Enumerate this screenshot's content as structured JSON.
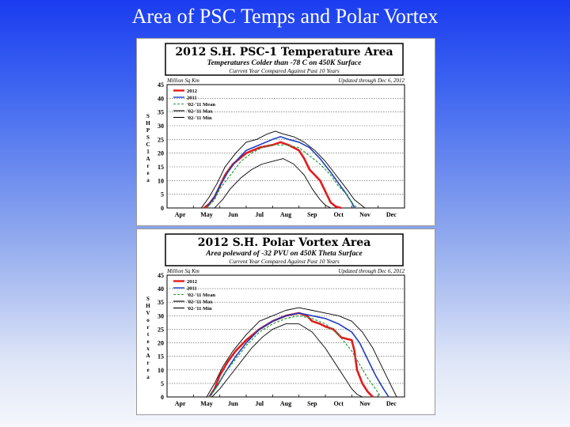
{
  "slide": {
    "title": "Area of PSC Temps and Polar Vortex"
  },
  "chart_data": [
    {
      "type": "line",
      "title": "2012 S.H. PSC-1 Temperature Area",
      "subtitle": "Temperatures Colder than -78 C on 450K Surface",
      "subtitle2": "Current Year Compared Against Past 10 Years",
      "units_label": "Million Sq Km",
      "updated": "Updated through Dec 6, 2012",
      "ylabel": "SH PSC1 Area",
      "ylim": [
        0,
        45
      ],
      "yticks": [
        "0",
        "5",
        "10",
        "15",
        "20",
        "25",
        "30",
        "35",
        "40",
        "45"
      ],
      "xlim": [
        0,
        9
      ],
      "xticks": [
        "Apr",
        "May",
        "Jun",
        "Jul",
        "Aug",
        "Sep",
        "Oct",
        "Nov",
        "Dec"
      ],
      "legend": {
        "placement": "top-left",
        "entries": [
          "2012",
          "2011",
          "'02-'11 Mean",
          "'02-'11 Max",
          "'02-'11 Min"
        ]
      },
      "series": [
        {
          "name": "2012",
          "color": "#e31a1c",
          "style": "solid-thick",
          "x": [
            1.4,
            1.6,
            1.8,
            2.0,
            2.2,
            2.5,
            3.0,
            3.5,
            4.0,
            4.3,
            4.6,
            4.8,
            5.0,
            5.2,
            5.4,
            5.6,
            5.8,
            6.0,
            6.2,
            6.4,
            6.6
          ],
          "y": [
            0,
            1.5,
            4,
            8,
            12,
            16,
            20,
            22,
            23,
            24,
            23,
            22,
            21,
            18,
            14,
            12,
            10,
            6,
            2,
            0.5,
            0
          ]
        },
        {
          "name": "2011",
          "color": "#1f3fbf",
          "style": "solid",
          "x": [
            1.5,
            1.8,
            2.0,
            2.3,
            2.6,
            3.0,
            3.5,
            4.0,
            4.3,
            4.6,
            5.0,
            5.4,
            5.8,
            6.2,
            6.5,
            6.8,
            7.0,
            7.1
          ],
          "y": [
            0,
            4,
            8,
            13,
            17,
            21,
            23,
            25,
            26,
            25,
            24,
            22,
            18,
            13,
            9,
            5,
            2,
            0
          ]
        },
        {
          "name": "'02-'11 Mean",
          "color": "#1e9e3a",
          "style": "dashed",
          "x": [
            1.5,
            1.8,
            2.0,
            2.4,
            2.8,
            3.2,
            3.6,
            4.0,
            4.5,
            5.0,
            5.4,
            5.8,
            6.2,
            6.5,
            6.8,
            7.0,
            7.2
          ],
          "y": [
            0,
            3,
            7,
            12,
            17,
            20,
            22,
            23,
            23,
            22,
            19,
            16,
            12,
            8,
            5,
            2,
            0
          ]
        },
        {
          "name": "'02-'11 Max",
          "color": "#000000",
          "style": "solid-thin",
          "x": [
            1.3,
            1.6,
            1.9,
            2.2,
            2.6,
            3.0,
            3.4,
            3.8,
            4.1,
            4.4,
            4.8,
            5.2,
            5.6,
            6.0,
            6.4,
            6.8,
            7.1,
            7.5
          ],
          "y": [
            0,
            4,
            9,
            15,
            20,
            24,
            25,
            27,
            28,
            27,
            26,
            24,
            21,
            17,
            12,
            7,
            3,
            0
          ]
        },
        {
          "name": "'02-'11 Min",
          "color": "#000000",
          "style": "solid-thin",
          "x": [
            1.8,
            2.1,
            2.4,
            2.8,
            3.2,
            3.6,
            4.0,
            4.4,
            4.8,
            5.2,
            5.5,
            5.8,
            6.0,
            6.2
          ],
          "y": [
            0,
            3,
            7,
            11,
            14,
            16,
            17,
            18,
            16,
            12,
            7,
            3,
            1,
            0
          ]
        }
      ]
    },
    {
      "type": "line",
      "title": "2012 S.H. Polar Vortex Area",
      "subtitle": "Area poleward of -32 PVU on 450K Theta Surface",
      "subtitle2": "Current Year Compared Against Past 10 Years",
      "units_label": "Million Sq Km",
      "updated": "Updated through Dec 6, 2012",
      "ylabel": "SH Vortex Area",
      "ylim": [
        0,
        45
      ],
      "yticks": [
        "0",
        "5",
        "10",
        "15",
        "20",
        "25",
        "30",
        "35",
        "40",
        "45"
      ],
      "xlim": [
        0,
        9
      ],
      "xticks": [
        "Apr",
        "May",
        "Jun",
        "Jul",
        "Aug",
        "Sep",
        "Oct",
        "Nov",
        "Dec"
      ],
      "legend": {
        "placement": "top-left",
        "entries": [
          "2012",
          "2011",
          "'02-'11 Mean",
          "'02-'11 Max",
          "'02-'11 Min"
        ]
      },
      "series": [
        {
          "name": "2012",
          "color": "#e31a1c",
          "style": "solid-thick",
          "x": [
            1.6,
            1.8,
            2.0,
            2.3,
            2.6,
            3.0,
            3.5,
            4.0,
            4.5,
            5.0,
            5.3,
            5.5,
            5.8,
            6.0,
            6.3,
            6.6,
            7.0,
            7.1,
            7.2,
            7.4,
            7.6,
            7.8
          ],
          "y": [
            0,
            3,
            8,
            13,
            17,
            21,
            25,
            28,
            30,
            31,
            30,
            28,
            27,
            26,
            25,
            22,
            21,
            17,
            10,
            5,
            2,
            0
          ]
        },
        {
          "name": "2011",
          "color": "#1f3fbf",
          "style": "solid",
          "x": [
            1.6,
            1.9,
            2.2,
            2.6,
            3.0,
            3.5,
            4.0,
            4.5,
            5.0,
            5.5,
            6.0,
            6.5,
            7.0,
            7.3,
            7.6,
            7.9,
            8.2,
            8.4
          ],
          "y": [
            0,
            4,
            9,
            15,
            20,
            25,
            28,
            30,
            31,
            30,
            29,
            27,
            24,
            20,
            14,
            8,
            3,
            0
          ]
        },
        {
          "name": "'02-'11 Mean",
          "color": "#1e9e3a",
          "style": "dashed",
          "x": [
            1.6,
            1.9,
            2.2,
            2.6,
            3.0,
            3.5,
            4.0,
            4.5,
            5.0,
            5.5,
            6.0,
            6.5,
            7.0,
            7.3,
            7.6,
            7.9,
            8.1
          ],
          "y": [
            0,
            4,
            9,
            14,
            19,
            24,
            27,
            29,
            30,
            29,
            27,
            23,
            17,
            12,
            7,
            3,
            0
          ]
        },
        {
          "name": "'02-'11 Max",
          "color": "#000000",
          "style": "solid-thin",
          "x": [
            1.5,
            1.8,
            2.1,
            2.5,
            3.0,
            3.5,
            4.0,
            4.5,
            5.0,
            5.5,
            6.0,
            6.5,
            7.0,
            7.4,
            7.8,
            8.2,
            8.5,
            8.7
          ],
          "y": [
            0,
            5,
            11,
            17,
            23,
            28,
            30,
            32,
            33,
            32,
            31,
            30,
            28,
            24,
            18,
            10,
            4,
            0
          ]
        },
        {
          "name": "'02-'11 Min",
          "color": "#000000",
          "style": "solid-thin",
          "x": [
            1.7,
            2.0,
            2.4,
            2.8,
            3.2,
            3.6,
            4.0,
            4.5,
            5.0,
            5.5,
            6.0,
            6.4,
            6.8,
            7.0,
            7.2,
            7.4
          ],
          "y": [
            0,
            3,
            8,
            13,
            18,
            22,
            25,
            27,
            27,
            24,
            18,
            12,
            6,
            3,
            1,
            0
          ]
        }
      ]
    }
  ]
}
